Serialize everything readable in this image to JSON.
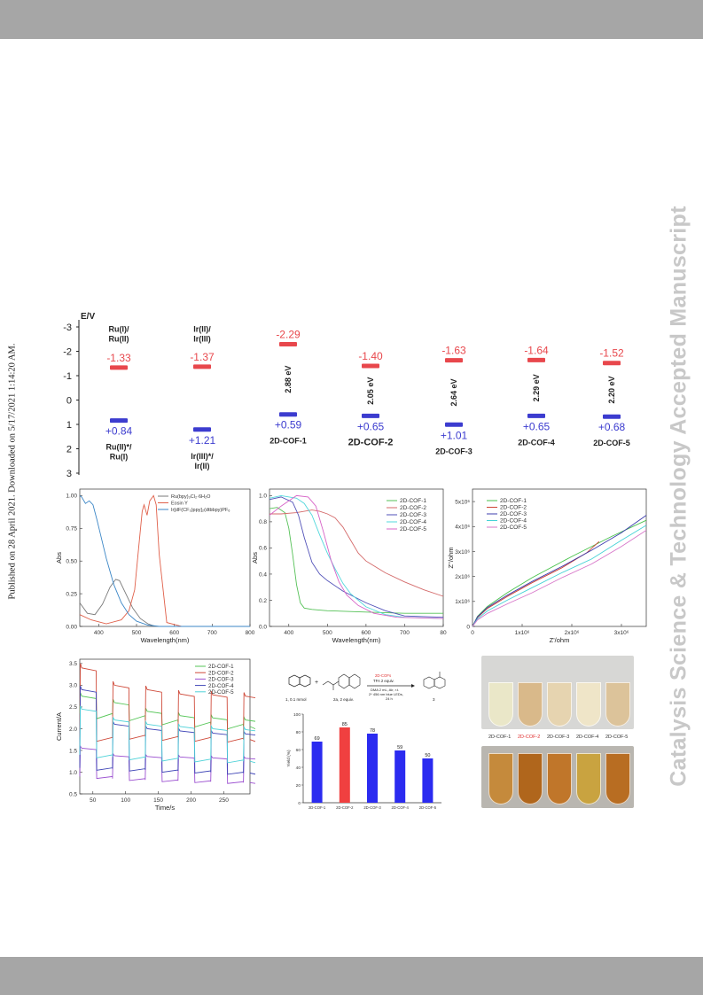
{
  "page": {
    "side_title": "Catalysis Science & Technology Accepted Manuscript",
    "published_note": "Published on 28 April 2021. Downloaded on 5/17/2021 1:14:20 AM."
  },
  "energy_diagram": {
    "axis_label": "E/V",
    "ticks": [
      "-3",
      "-2",
      "-1",
      "0",
      "1",
      "2",
      "3"
    ],
    "columns": [
      {
        "top_label": "Ru(I)/\nRu(II)",
        "cb": "-1.33",
        "vb": "+0.84",
        "bottom_label": "Ru(II)*/\nRu(I)",
        "gap": ""
      },
      {
        "top_label": "Ir(II)/\nIr(III)",
        "cb": "-1.37",
        "vb": "+1.21",
        "bottom_label": "Ir(III)*/\nIr(II)",
        "gap": ""
      },
      {
        "top_label": "",
        "cb": "-2.29",
        "vb": "+0.59",
        "bottom_label": "2D-COF-1",
        "gap": "2.88 eV"
      },
      {
        "top_label": "",
        "cb": "-1.40",
        "vb": "+0.65",
        "bottom_label": "2D-COF-2",
        "gap": "2.05 eV"
      },
      {
        "top_label": "",
        "cb": "-1.63",
        "vb": "+1.01",
        "bottom_label": "2D-COF-3",
        "gap": "2.64 eV"
      },
      {
        "top_label": "",
        "cb": "-1.64",
        "vb": "+0.65",
        "bottom_label": "2D-COF-4",
        "gap": "2.29 eV"
      },
      {
        "top_label": "",
        "cb": "-1.52",
        "vb": "+0.68",
        "bottom_label": "2D-COF-5",
        "gap": "2.20 eV"
      }
    ],
    "colors": {
      "cb": "#e8474c",
      "vb": "#3c3ccf"
    }
  },
  "chart_data": [
    {
      "type": "line",
      "id": "abs-dyes",
      "xlabel": "Wavelength(nm)",
      "ylabel": "Abs",
      "xlim": [
        350,
        800
      ],
      "ylim": [
        0,
        1.05
      ],
      "xticks": [
        "400",
        "500",
        "600",
        "700",
        "800"
      ],
      "yticks": [
        "0.00",
        "0.25",
        "0.50",
        "0.75",
        "1.00"
      ],
      "legend_position": "top-right",
      "series": [
        {
          "name": "Ru(bpy)₃Cl₂·6H₂O",
          "color": "#7a7a7a",
          "x": [
            350,
            370,
            390,
            410,
            430,
            445,
            455,
            470,
            490,
            510,
            530,
            550,
            600,
            700,
            800
          ],
          "y": [
            0.18,
            0.1,
            0.09,
            0.17,
            0.3,
            0.36,
            0.35,
            0.26,
            0.14,
            0.06,
            0.02,
            0.0,
            0.0,
            0.0,
            0.0
          ]
        },
        {
          "name": "Eosin Y",
          "color": "#e0604a",
          "x": [
            350,
            380,
            420,
            460,
            480,
            495,
            505,
            515,
            520,
            528,
            535,
            545,
            552,
            560,
            580,
            620,
            800
          ],
          "y": [
            0.09,
            0.05,
            0.02,
            0.05,
            0.12,
            0.28,
            0.58,
            0.88,
            0.93,
            0.85,
            0.96,
            1.0,
            0.93,
            0.55,
            0.03,
            0.0,
            0.0
          ]
        },
        {
          "name": "Ir[dF(CF₃)ppy]₂(dtbbpy)PF₆",
          "color": "#3b86c6",
          "x": [
            350,
            355,
            365,
            375,
            385,
            395,
            405,
            420,
            440,
            460,
            480,
            500,
            530,
            560,
            600,
            800
          ],
          "y": [
            1.0,
            0.99,
            0.94,
            0.96,
            0.93,
            0.82,
            0.7,
            0.52,
            0.32,
            0.18,
            0.09,
            0.04,
            0.01,
            0.0,
            0.0,
            0.0
          ]
        }
      ]
    },
    {
      "type": "line",
      "id": "abs-cofs",
      "xlabel": "Wavelength(nm)",
      "ylabel": "Abs",
      "xlim": [
        350,
        800
      ],
      "ylim": [
        0,
        1.05
      ],
      "xticks": [
        "400",
        "500",
        "600",
        "700",
        "80"
      ],
      "yticks": [
        "0.0",
        "0.2",
        "0.4",
        "0.6",
        "0.8",
        "1.0"
      ],
      "legend_position": "top-right",
      "series": [
        {
          "name": "2D-COF-1",
          "color": "#55c157",
          "x": [
            350,
            370,
            390,
            400,
            410,
            420,
            430,
            440,
            460,
            500,
            600,
            700,
            800
          ],
          "y": [
            0.9,
            0.91,
            0.87,
            0.75,
            0.55,
            0.32,
            0.18,
            0.14,
            0.13,
            0.12,
            0.11,
            0.1,
            0.1
          ]
        },
        {
          "name": "2D-COF-2",
          "color": "#d46a6a",
          "x": [
            350,
            380,
            420,
            460,
            480,
            500,
            520,
            540,
            560,
            580,
            600,
            650,
            700,
            750,
            800
          ],
          "y": [
            0.86,
            0.86,
            0.87,
            0.89,
            0.88,
            0.86,
            0.83,
            0.76,
            0.66,
            0.56,
            0.5,
            0.41,
            0.34,
            0.28,
            0.23
          ]
        },
        {
          "name": "2D-COF-3",
          "color": "#5151b8",
          "x": [
            350,
            380,
            410,
            425,
            440,
            460,
            480,
            500,
            540,
            600,
            650,
            700,
            800
          ],
          "y": [
            0.97,
            0.99,
            0.95,
            0.85,
            0.68,
            0.49,
            0.4,
            0.35,
            0.27,
            0.18,
            0.12,
            0.08,
            0.07
          ]
        },
        {
          "name": "2D-COF-4",
          "color": "#52d8dc",
          "x": [
            350,
            380,
            420,
            440,
            460,
            480,
            500,
            520,
            540,
            560,
            600,
            650,
            700,
            800
          ],
          "y": [
            0.98,
            1.0,
            0.98,
            0.94,
            0.85,
            0.7,
            0.56,
            0.44,
            0.33,
            0.25,
            0.15,
            0.09,
            0.07,
            0.06
          ]
        },
        {
          "name": "2D-COF-5",
          "color": "#d763c7",
          "x": [
            350,
            380,
            420,
            450,
            470,
            490,
            510,
            530,
            550,
            580,
            620,
            680,
            800
          ],
          "y": [
            0.85,
            0.92,
            1.0,
            0.99,
            0.92,
            0.72,
            0.5,
            0.34,
            0.24,
            0.16,
            0.1,
            0.07,
            0.06
          ]
        }
      ]
    },
    {
      "type": "line",
      "id": "eis-nyquist",
      "xlabel": "Z'/ohm",
      "ylabel": "Z''/ohm",
      "xlim": [
        0,
        3500000
      ],
      "ylim": [
        0,
        5500000
      ],
      "xticks": [
        "0",
        "1x10⁶",
        "2x10⁶",
        "3x10⁶"
      ],
      "yticks": [
        "0",
        "1x10⁶",
        "2x10⁶",
        "3x10⁶",
        "4x10⁶",
        "5x10⁶"
      ],
      "legend_position": "top-left",
      "series": [
        {
          "name": "2D-COF-1",
          "color": "#48c24c",
          "x": [
            0,
            100000,
            300000,
            700000,
            1200000,
            2000000,
            2800000,
            3500000
          ],
          "y": [
            0,
            400000,
            800000,
            1350000,
            1950000,
            2800000,
            3600000,
            4250000
          ]
        },
        {
          "name": "2D-COF-2",
          "color": "#cc4433",
          "x": [
            0,
            100000,
            300000,
            700000,
            1200000,
            1800000,
            2300000,
            2550000
          ],
          "y": [
            0,
            350000,
            720000,
            1200000,
            1750000,
            2350000,
            2950000,
            3400000
          ]
        },
        {
          "name": "2D-COF-3",
          "color": "#3c3cae",
          "x": [
            0,
            100000,
            300000,
            700000,
            1200000,
            1800000,
            2400000,
            3000000,
            3500000
          ],
          "y": [
            0,
            380000,
            760000,
            1250000,
            1800000,
            2400000,
            3050000,
            3750000,
            4450000
          ]
        },
        {
          "name": "2D-COF-4",
          "color": "#44d2d6",
          "x": [
            0,
            100000,
            300000,
            700000,
            1200000,
            1800000,
            2400000,
            3000000,
            3500000
          ],
          "y": [
            0,
            300000,
            620000,
            1050000,
            1550000,
            2150000,
            2700000,
            3450000,
            4050000
          ]
        },
        {
          "name": "2D-COF-5",
          "color": "#d777c9",
          "x": [
            0,
            100000,
            300000,
            700000,
            1200000,
            1800000,
            2400000,
            3000000,
            3500000
          ],
          "y": [
            0,
            260000,
            520000,
            900000,
            1350000,
            1950000,
            2500000,
            3200000,
            3850000
          ]
        }
      ]
    },
    {
      "type": "line",
      "id": "photocurrent",
      "xlabel": "Time/s",
      "ylabel": "Current/A",
      "xlim": [
        30,
        290
      ],
      "ylim": [
        0.5,
        3.6
      ],
      "xticks": [
        "50",
        "100",
        "150",
        "200",
        "250"
      ],
      "yticks": [
        "0.5",
        "1.0",
        "1.5",
        "2.0",
        "2.5",
        "3.0",
        "3.5"
      ],
      "legend_position": "top-right",
      "cycle": {
        "start": 30,
        "on_duration": 25,
        "off_duration": 25,
        "count": 6
      },
      "series": [
        {
          "name": "2D-COF-1",
          "color": "#55c657",
          "on": [
            2.75,
            2.6,
            2.4,
            2.3,
            2.25,
            2.2
          ],
          "off": [
            2.35,
            2.3,
            2.2,
            2.15,
            2.1,
            2.05
          ]
        },
        {
          "name": "2D-COF-2",
          "color": "#cf4a3a",
          "on": [
            3.4,
            3.0,
            2.9,
            2.8,
            2.78,
            2.75
          ],
          "off": [
            1.8,
            1.85,
            1.82,
            1.8,
            1.78,
            1.75
          ]
        },
        {
          "name": "2D-COF-3",
          "color": "#9b4fd0",
          "on": [
            1.55,
            1.38,
            1.36,
            1.35,
            1.33,
            1.32
          ],
          "off": [
            0.9,
            0.85,
            0.82,
            0.8,
            0.78,
            0.76
          ]
        },
        {
          "name": "2D-COF-4",
          "color": "#3d43b6",
          "on": [
            2.9,
            2.1,
            2.0,
            1.95,
            1.9,
            1.88
          ],
          "off": [
            1.1,
            1.08,
            1.05,
            1.03,
            1.0,
            0.98
          ]
        },
        {
          "name": "2D-COF-5",
          "color": "#4fd2d8",
          "on": [
            2.45,
            2.2,
            2.1,
            2.05,
            2.0,
            1.98
          ],
          "off": [
            1.4,
            1.35,
            1.32,
            1.3,
            1.28,
            1.25
          ]
        }
      ]
    },
    {
      "type": "bar",
      "id": "yield-bars",
      "ylabel": "Yield (%)",
      "ylim": [
        0,
        100
      ],
      "yticks": [
        "0",
        "20",
        "40",
        "60",
        "80",
        "100"
      ],
      "categories": [
        "2D-COF-1",
        "2D-COF-2",
        "2D-COF-3",
        "2D-COF-4",
        "2D-COF-5"
      ],
      "values": [
        69,
        85,
        78,
        59,
        50
      ],
      "colors": [
        "#2b2bf0",
        "#f04040",
        "#2b2bf0",
        "#2b2bf0",
        "#2b2bf0"
      ]
    }
  ],
  "reaction_scheme": {
    "reagent_1": "1, 0.1 mmol",
    "reagent_2": "2a, 2 equiv.",
    "product": "3",
    "above_arrow_1": "2D-COFs",
    "above_arrow_2": "TFA 2 equiv.",
    "below_arrow_1": "DMA 2 mL, Air, r.t.",
    "below_arrow_2": "2* 456 nm blue LEDs,",
    "below_arrow_3": "24 h",
    "plus": "+"
  },
  "photos": {
    "labels": [
      "2D-COF-1",
      "2D-COF-2",
      "2D-COF-3",
      "2D-COF-4",
      "2D-COF-5"
    ],
    "label_colors": [
      "#333333",
      "#e03030",
      "#333333",
      "#333333",
      "#333333"
    ],
    "top_tube_colors": [
      "#eae7c8",
      "#d9b98a",
      "#e6d4b0",
      "#efe5c8",
      "#dcc39a"
    ],
    "bottom_tube_colors": [
      "#c58a3c",
      "#b0661c",
      "#c0762a",
      "#c9a340",
      "#b86d22"
    ]
  }
}
